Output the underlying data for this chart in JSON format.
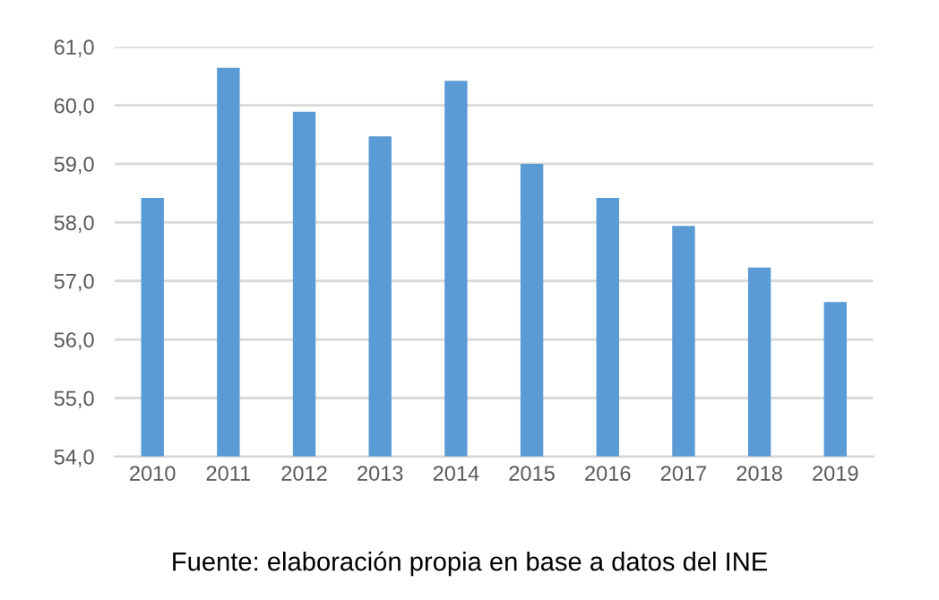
{
  "chart_data": {
    "type": "bar",
    "categories": [
      "2010",
      "2011",
      "2012",
      "2013",
      "2014",
      "2015",
      "2016",
      "2017",
      "2018",
      "2019"
    ],
    "values": [
      58.42,
      60.64,
      59.89,
      59.47,
      60.42,
      59.0,
      58.42,
      57.94,
      57.23,
      56.64
    ],
    "color": "#5b9bd5",
    "ylim": [
      54,
      61
    ],
    "yticks": [
      {
        "value": 54,
        "label": "54,0"
      },
      {
        "value": 55,
        "label": "55,0"
      },
      {
        "value": 56,
        "label": "56,0"
      },
      {
        "value": 57,
        "label": "57,0"
      },
      {
        "value": 58,
        "label": "58,0"
      },
      {
        "value": 59,
        "label": "59,0"
      },
      {
        "value": 60,
        "label": "60,0"
      },
      {
        "value": 61,
        "label": "61,0"
      }
    ],
    "grid": "y",
    "annotations": [
      "Fuente: elaboración propia en base a datos del INE"
    ]
  }
}
